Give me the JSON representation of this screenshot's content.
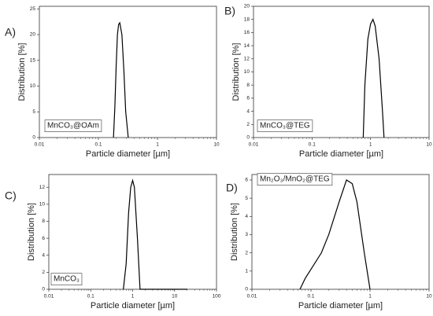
{
  "chart_data": [
    {
      "type": "line",
      "panel_label": "A)",
      "annotation": "MnCO₃@OAm",
      "xlabel": "Particle diameter [µm]",
      "ylabel": "Distribution [%]",
      "log_x": true,
      "color": "#000000",
      "xlim": [
        0.01,
        10
      ],
      "ylim": [
        0,
        25.5
      ],
      "xticks": [
        0.01,
        0.1,
        1,
        10
      ],
      "yticks": [
        0,
        5,
        10,
        15,
        20,
        25
      ],
      "x": [
        0.18,
        0.19,
        0.2,
        0.21,
        0.22,
        0.23,
        0.25,
        0.27,
        0.29,
        0.32
      ],
      "values": [
        0,
        6,
        14,
        20,
        22,
        22.3,
        20,
        13,
        5,
        0
      ]
    },
    {
      "type": "line",
      "panel_label": "B)",
      "annotation": "MnCO₃@TEG",
      "xlabel": "Particle diameter [µm]",
      "ylabel": "Distribution [%]",
      "log_x": true,
      "color": "#000000",
      "xlim": [
        0.01,
        10
      ],
      "ylim": [
        0,
        20
      ],
      "xticks": [
        0.01,
        0.1,
        1,
        10
      ],
      "yticks": [
        0,
        2,
        4,
        6,
        8,
        10,
        12,
        14,
        16,
        18,
        20
      ],
      "x": [
        0.75,
        0.8,
        0.9,
        1.0,
        1.1,
        1.2,
        1.4,
        1.6,
        1.7
      ],
      "values": [
        0,
        8,
        15,
        17.3,
        18,
        17,
        12,
        4,
        0
      ]
    },
    {
      "type": "line",
      "panel_label": "C)",
      "annotation": "MnCO₃",
      "xlabel": "Particle diameter [µm]",
      "ylabel": "Distribution [%]",
      "log_x": true,
      "color": "#000000",
      "xlim": [
        0.01,
        100
      ],
      "ylim": [
        0,
        13.5
      ],
      "xticks": [
        0.01,
        0.1,
        1,
        10,
        100
      ],
      "yticks": [
        0,
        2,
        4,
        6,
        8,
        10,
        12
      ],
      "x": [
        0.6,
        0.7,
        0.8,
        0.9,
        1.0,
        1.1,
        1.3,
        1.5,
        20
      ],
      "values": [
        0,
        3,
        9,
        12,
        12.8,
        12,
        6,
        0,
        0
      ]
    },
    {
      "type": "line",
      "panel_label": "D)",
      "annotation": "Mn₂O₃/MnO₂@TEG",
      "xlabel": "Particle diameter [µm]",
      "ylabel": "Distribution [%]",
      "log_x": true,
      "color": "#000000",
      "xlim": [
        0.01,
        10
      ],
      "ylim": [
        0,
        6.3
      ],
      "xticks": [
        0.01,
        0.1,
        1,
        10
      ],
      "yticks": [
        0,
        1,
        2,
        3,
        4,
        5,
        6
      ],
      "x": [
        0.065,
        0.08,
        0.1,
        0.15,
        0.2,
        0.3,
        0.4,
        0.5,
        0.6,
        0.8,
        1.0
      ],
      "values": [
        0,
        0.6,
        1.1,
        2,
        3,
        4.8,
        6,
        5.8,
        4.8,
        2,
        0
      ]
    }
  ]
}
